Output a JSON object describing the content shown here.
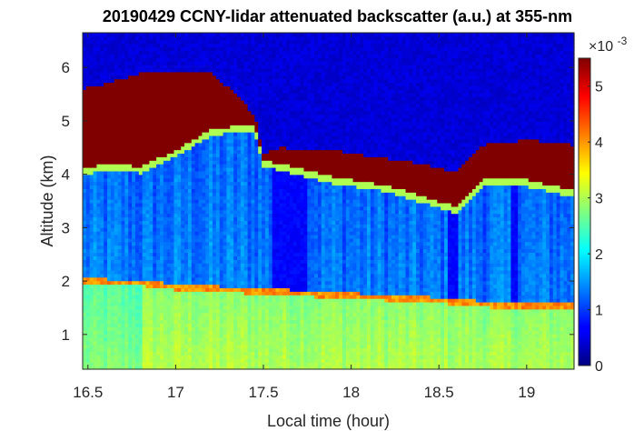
{
  "chart_data": {
    "type": "heatmap",
    "title": "20190429 CCNY-lidar attenuated backscatter (a.u.) at 355-nm",
    "xlabel": "Local time (hour)",
    "ylabel": "Altitude (km)",
    "xlim": [
      16.47,
      19.27
    ],
    "ylim": [
      0.35,
      6.65
    ],
    "xticks": [
      "16.5",
      "17",
      "17.5",
      "18",
      "18.5",
      "19"
    ],
    "xtick_values": [
      16.5,
      17,
      17.5,
      18,
      18.5,
      19
    ],
    "yticks": [
      "1",
      "2",
      "3",
      "4",
      "5",
      "6"
    ],
    "ytick_values": [
      1,
      2,
      3,
      4,
      5,
      6
    ],
    "colorbar": {
      "colormap": "jet",
      "range": [
        0,
        5.5
      ],
      "ticks": [
        "0",
        "1",
        "2",
        "3",
        "4",
        "5"
      ],
      "tick_values": [
        0,
        1,
        2,
        3,
        4,
        5
      ],
      "multiplier": "×10",
      "exponent": "-3"
    },
    "features": {
      "boundary_layer_top_km": [
        [
          16.47,
          2.05
        ],
        [
          16.8,
          2.03
        ],
        [
          17.0,
          1.95
        ],
        [
          17.3,
          1.9
        ],
        [
          17.6,
          1.85
        ],
        [
          17.9,
          1.8
        ],
        [
          18.2,
          1.75
        ],
        [
          18.5,
          1.7
        ],
        [
          18.8,
          1.62
        ],
        [
          19.27,
          1.6
        ]
      ],
      "cloud_base_km": [
        [
          16.47,
          4.1
        ],
        [
          16.6,
          4.2
        ],
        [
          16.8,
          4.15
        ],
        [
          17.0,
          4.45
        ],
        [
          17.2,
          4.85
        ],
        [
          17.45,
          4.95
        ],
        [
          17.5,
          4.25
        ],
        [
          17.6,
          4.2
        ],
        [
          17.9,
          3.95
        ],
        [
          18.2,
          3.8
        ],
        [
          18.4,
          3.6
        ],
        [
          18.6,
          3.4
        ],
        [
          18.75,
          3.9
        ],
        [
          19.0,
          3.9
        ],
        [
          19.27,
          3.7
        ]
      ],
      "cloud_top_km": [
        [
          16.47,
          5.6
        ],
        [
          16.6,
          5.7
        ],
        [
          16.8,
          5.9
        ],
        [
          17.0,
          5.95
        ],
        [
          17.2,
          5.9
        ],
        [
          17.35,
          5.5
        ],
        [
          17.45,
          5.1
        ],
        [
          17.5,
          4.4
        ],
        [
          17.6,
          4.5
        ],
        [
          17.9,
          4.45
        ],
        [
          18.2,
          4.3
        ],
        [
          18.4,
          4.2
        ],
        [
          18.6,
          4.05
        ],
        [
          18.75,
          4.55
        ],
        [
          19.0,
          4.65
        ],
        [
          19.27,
          4.55
        ]
      ]
    }
  }
}
